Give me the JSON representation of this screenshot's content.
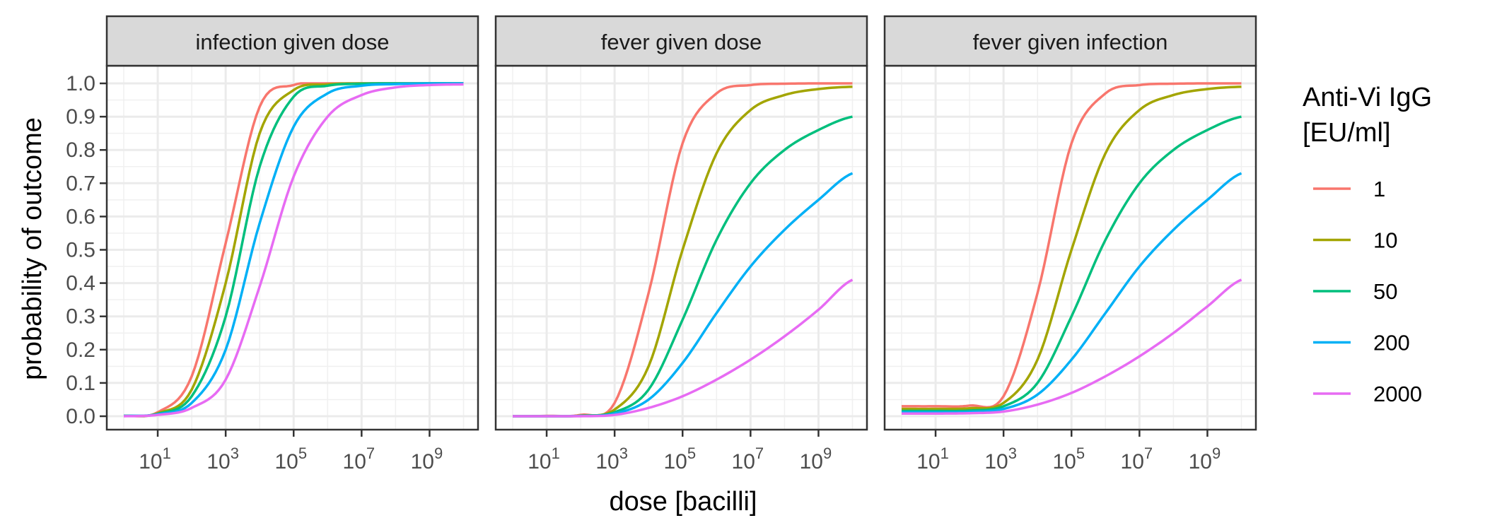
{
  "chart_data": {
    "type": "line",
    "x_scale": "log10",
    "xlabel": "dose [bacilli]",
    "ylabel": "probability of outcome",
    "x_ticks": [
      {
        "value": 10,
        "base": "10",
        "exp": "1"
      },
      {
        "value": 1000,
        "base": "10",
        "exp": "3"
      },
      {
        "value": 100000,
        "base": "10",
        "exp": "5"
      },
      {
        "value": 10000000,
        "base": "10",
        "exp": "7"
      },
      {
        "value": 1000000000,
        "base": "10",
        "exp": "9"
      }
    ],
    "y_ticks": [
      "0.0",
      "0.1",
      "0.2",
      "0.3",
      "0.4",
      "0.5",
      "0.6",
      "0.7",
      "0.8",
      "0.9",
      "1.0"
    ],
    "ylim": [
      0,
      1
    ],
    "xlim": [
      1,
      10000000000
    ],
    "grid": true,
    "legend": {
      "title_lines": [
        "Anti-Vi IgG",
        "[EU/ml]"
      ],
      "placement": "right",
      "entries": [
        {
          "label": "1",
          "color": "#F8766D"
        },
        {
          "label": "10",
          "color": "#A3A500"
        },
        {
          "label": "50",
          "color": "#00BF7D"
        },
        {
          "label": "200",
          "color": "#00B0F6"
        },
        {
          "label": "2000",
          "color": "#E76BF3"
        }
      ]
    },
    "panels": [
      {
        "title": "infection given dose",
        "series": [
          {
            "name": "1",
            "color": "#F8766D",
            "x": [
              1,
              10,
              100,
              1000,
              10000,
              100000,
              1000000,
              10000000,
              100000000,
              1000000000,
              10000000000
            ],
            "y": [
              0.001,
              0.012,
              0.12,
              0.52,
              0.93,
              0.995,
              1.0,
              1.0,
              1.0,
              1.0,
              1.0
            ]
          },
          {
            "name": "10",
            "color": "#A3A500",
            "x": [
              1,
              10,
              100,
              1000,
              10000,
              100000,
              1000000,
              10000000,
              100000000,
              1000000000,
              10000000000
            ],
            "y": [
              0.001,
              0.009,
              0.08,
              0.4,
              0.85,
              0.98,
              0.997,
              1.0,
              1.0,
              1.0,
              1.0
            ]
          },
          {
            "name": "50",
            "color": "#00BF7D",
            "x": [
              1,
              10,
              100,
              1000,
              10000,
              100000,
              1000000,
              10000000,
              100000000,
              1000000000,
              10000000000
            ],
            "y": [
              0.001,
              0.007,
              0.06,
              0.3,
              0.75,
              0.96,
              0.993,
              0.999,
              1.0,
              1.0,
              1.0
            ]
          },
          {
            "name": "200",
            "color": "#00B0F6",
            "x": [
              1,
              10,
              100,
              1000,
              10000,
              100000,
              1000000,
              10000000,
              100000000,
              1000000000,
              10000000000
            ],
            "y": [
              0.001,
              0.006,
              0.04,
              0.2,
              0.58,
              0.87,
              0.97,
              0.993,
              0.998,
              1.0,
              1.0
            ]
          },
          {
            "name": "2000",
            "color": "#E76BF3",
            "x": [
              1,
              10,
              100,
              1000,
              10000,
              100000,
              1000000,
              10000000,
              100000000,
              1000000000,
              10000000000
            ],
            "y": [
              0.0,
              0.004,
              0.025,
              0.11,
              0.39,
              0.72,
              0.9,
              0.965,
              0.988,
              0.995,
              0.997
            ]
          }
        ]
      },
      {
        "title": "fever given dose",
        "series": [
          {
            "name": "1",
            "color": "#F8766D",
            "x": [
              1,
              10,
              100,
              1000,
              10000,
              100000,
              1000000,
              10000000,
              100000000,
              1000000000,
              10000000000
            ],
            "y": [
              0.0,
              0.001,
              0.004,
              0.04,
              0.37,
              0.82,
              0.97,
              0.995,
              0.999,
              1.0,
              1.0
            ]
          },
          {
            "name": "10",
            "color": "#A3A500",
            "x": [
              1,
              10,
              100,
              1000,
              10000,
              100000,
              1000000,
              10000000,
              100000000,
              1000000000,
              10000000000
            ],
            "y": [
              0.0,
              0.0,
              0.002,
              0.02,
              0.15,
              0.5,
              0.79,
              0.92,
              0.965,
              0.983,
              0.99
            ]
          },
          {
            "name": "50",
            "color": "#00BF7D",
            "x": [
              1,
              10,
              100,
              1000,
              10000,
              100000,
              1000000,
              10000000,
              100000000,
              1000000000,
              10000000000
            ],
            "y": [
              0.0,
              0.0,
              0.001,
              0.012,
              0.08,
              0.29,
              0.53,
              0.7,
              0.8,
              0.86,
              0.9
            ]
          },
          {
            "name": "200",
            "color": "#00B0F6",
            "x": [
              1,
              10,
              100,
              1000,
              10000,
              100000,
              1000000,
              10000000,
              100000000,
              1000000000,
              10000000000
            ],
            "y": [
              0.0,
              0.0,
              0.001,
              0.008,
              0.05,
              0.16,
              0.31,
              0.45,
              0.56,
              0.65,
              0.73
            ]
          },
          {
            "name": "2000",
            "color": "#E76BF3",
            "x": [
              1,
              10,
              100,
              1000,
              10000,
              100000,
              1000000,
              10000000,
              100000000,
              1000000000,
              10000000000
            ],
            "y": [
              0.0,
              0.0,
              0.0,
              0.004,
              0.025,
              0.06,
              0.11,
              0.17,
              0.24,
              0.32,
              0.41
            ]
          }
        ]
      },
      {
        "title": "fever given infection",
        "series": [
          {
            "name": "1",
            "color": "#F8766D",
            "x": [
              1,
              10,
              100,
              1000,
              10000,
              100000,
              1000000,
              10000000,
              100000000,
              1000000000,
              10000000000
            ],
            "y": [
              0.03,
              0.03,
              0.032,
              0.06,
              0.37,
              0.82,
              0.97,
              0.995,
              0.999,
              1.0,
              1.0
            ]
          },
          {
            "name": "10",
            "color": "#A3A500",
            "x": [
              1,
              10,
              100,
              1000,
              10000,
              100000,
              1000000,
              10000000,
              100000000,
              1000000000,
              10000000000
            ],
            "y": [
              0.022,
              0.022,
              0.024,
              0.04,
              0.17,
              0.5,
              0.79,
              0.92,
              0.965,
              0.983,
              0.99
            ]
          },
          {
            "name": "50",
            "color": "#00BF7D",
            "x": [
              1,
              10,
              100,
              1000,
              10000,
              100000,
              1000000,
              10000000,
              100000000,
              1000000000,
              10000000000
            ],
            "y": [
              0.016,
              0.016,
              0.017,
              0.03,
              0.1,
              0.3,
              0.53,
              0.7,
              0.8,
              0.86,
              0.9
            ]
          },
          {
            "name": "200",
            "color": "#00B0F6",
            "x": [
              1,
              10,
              100,
              1000,
              10000,
              100000,
              1000000,
              10000000,
              100000000,
              1000000000,
              10000000000
            ],
            "y": [
              0.012,
              0.012,
              0.013,
              0.022,
              0.065,
              0.17,
              0.31,
              0.45,
              0.56,
              0.65,
              0.73
            ]
          },
          {
            "name": "2000",
            "color": "#E76BF3",
            "x": [
              1,
              10,
              100,
              1000,
              10000,
              100000,
              1000000,
              10000000,
              100000000,
              1000000000,
              10000000000
            ],
            "y": [
              0.008,
              0.008,
              0.009,
              0.014,
              0.035,
              0.07,
              0.12,
              0.18,
              0.25,
              0.33,
              0.41
            ]
          }
        ]
      }
    ]
  }
}
